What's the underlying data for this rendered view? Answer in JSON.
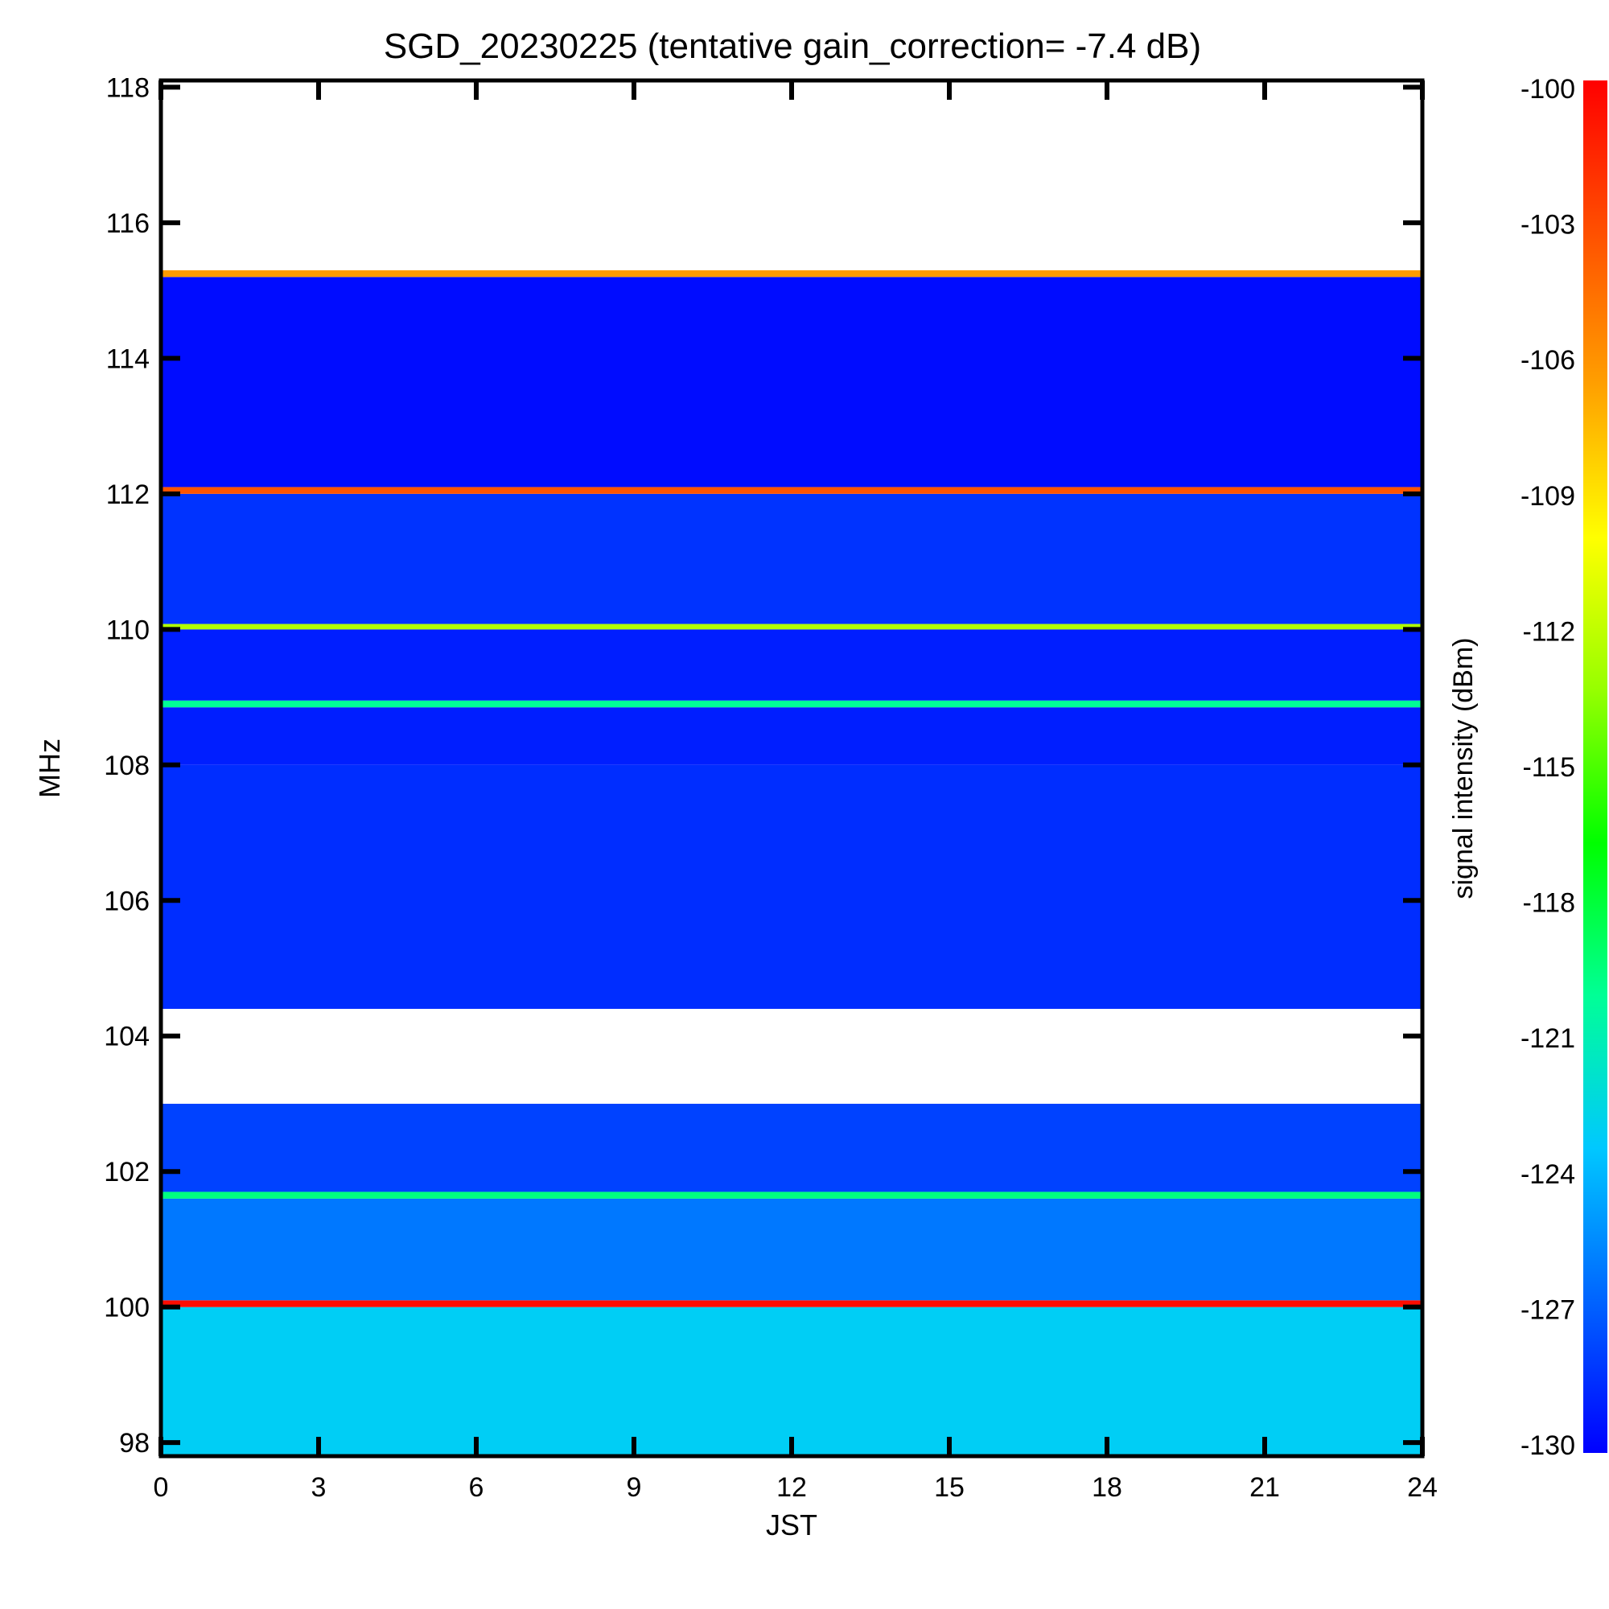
{
  "chart_data": {
    "type": "heatmap",
    "title": "SGD_20230225 (tentative gain_correction= -7.4 dB)",
    "xlabel": "JST",
    "ylabel": "MHz",
    "colorbar_label": "signal intensity (dBm)",
    "xlim": [
      0,
      24
    ],
    "ylim": [
      97.8,
      118.1
    ],
    "x_ticks": [
      0,
      3,
      6,
      9,
      12,
      15,
      18,
      21,
      24
    ],
    "x_tick_labels": [
      "0",
      "3",
      "6",
      "9",
      "12",
      "15",
      "18",
      "21",
      "24"
    ],
    "y_ticks": [
      98,
      100,
      102,
      104,
      106,
      108,
      110,
      112,
      114,
      116,
      118
    ],
    "y_tick_labels": [
      "98",
      "100",
      "102",
      "104",
      "106",
      "108",
      "110",
      "112",
      "114",
      "116",
      "118"
    ],
    "colorbar_range": [
      -130,
      -100
    ],
    "colorbar_ticks": [
      -100,
      -103,
      -106,
      -109,
      -112,
      -115,
      -118,
      -121,
      -124,
      -127,
      -130
    ],
    "colorbar_tick_labels": [
      "-100",
      "-103",
      "-106",
      "-109",
      "-112",
      "-115",
      "-118",
      "-121",
      "-124",
      "-127",
      "-130"
    ],
    "colormap": [
      "#0000ff",
      "#0064ff",
      "#00c8ff",
      "#00ff96",
      "#00ff00",
      "#96ff00",
      "#ffff00",
      "#ffa000",
      "#ff5000",
      "#ff0000"
    ],
    "bands": [
      {
        "fmin": 97.8,
        "fmax": 100.0,
        "level_dbm": -123.0
      },
      {
        "fmin": 100.0,
        "fmax": 100.1,
        "level_dbm": -100.5
      },
      {
        "fmin": 100.1,
        "fmax": 101.6,
        "level_dbm": -126.0
      },
      {
        "fmin": 101.6,
        "fmax": 101.7,
        "level_dbm": -119.5
      },
      {
        "fmin": 101.7,
        "fmax": 103.0,
        "level_dbm": -127.8
      },
      {
        "fmin": 103.0,
        "fmax": 104.4,
        "level_dbm": null
      },
      {
        "fmin": 104.4,
        "fmax": 108.0,
        "level_dbm": -128.5
      },
      {
        "fmin": 108.0,
        "fmax": 108.85,
        "level_dbm": -129.0
      },
      {
        "fmin": 108.85,
        "fmax": 108.95,
        "level_dbm": -120.0
      },
      {
        "fmin": 108.95,
        "fmax": 110.0,
        "level_dbm": -129.0
      },
      {
        "fmin": 110.0,
        "fmax": 110.08,
        "level_dbm": -112.5
      },
      {
        "fmin": 110.08,
        "fmax": 112.0,
        "level_dbm": -128.3
      },
      {
        "fmin": 112.0,
        "fmax": 112.1,
        "level_dbm": -103.5
      },
      {
        "fmin": 112.1,
        "fmax": 115.2,
        "level_dbm": -129.6
      },
      {
        "fmin": 115.2,
        "fmax": 115.3,
        "level_dbm": -106.5
      },
      {
        "fmin": 115.3,
        "fmax": 118.1,
        "level_dbm": null
      }
    ]
  }
}
